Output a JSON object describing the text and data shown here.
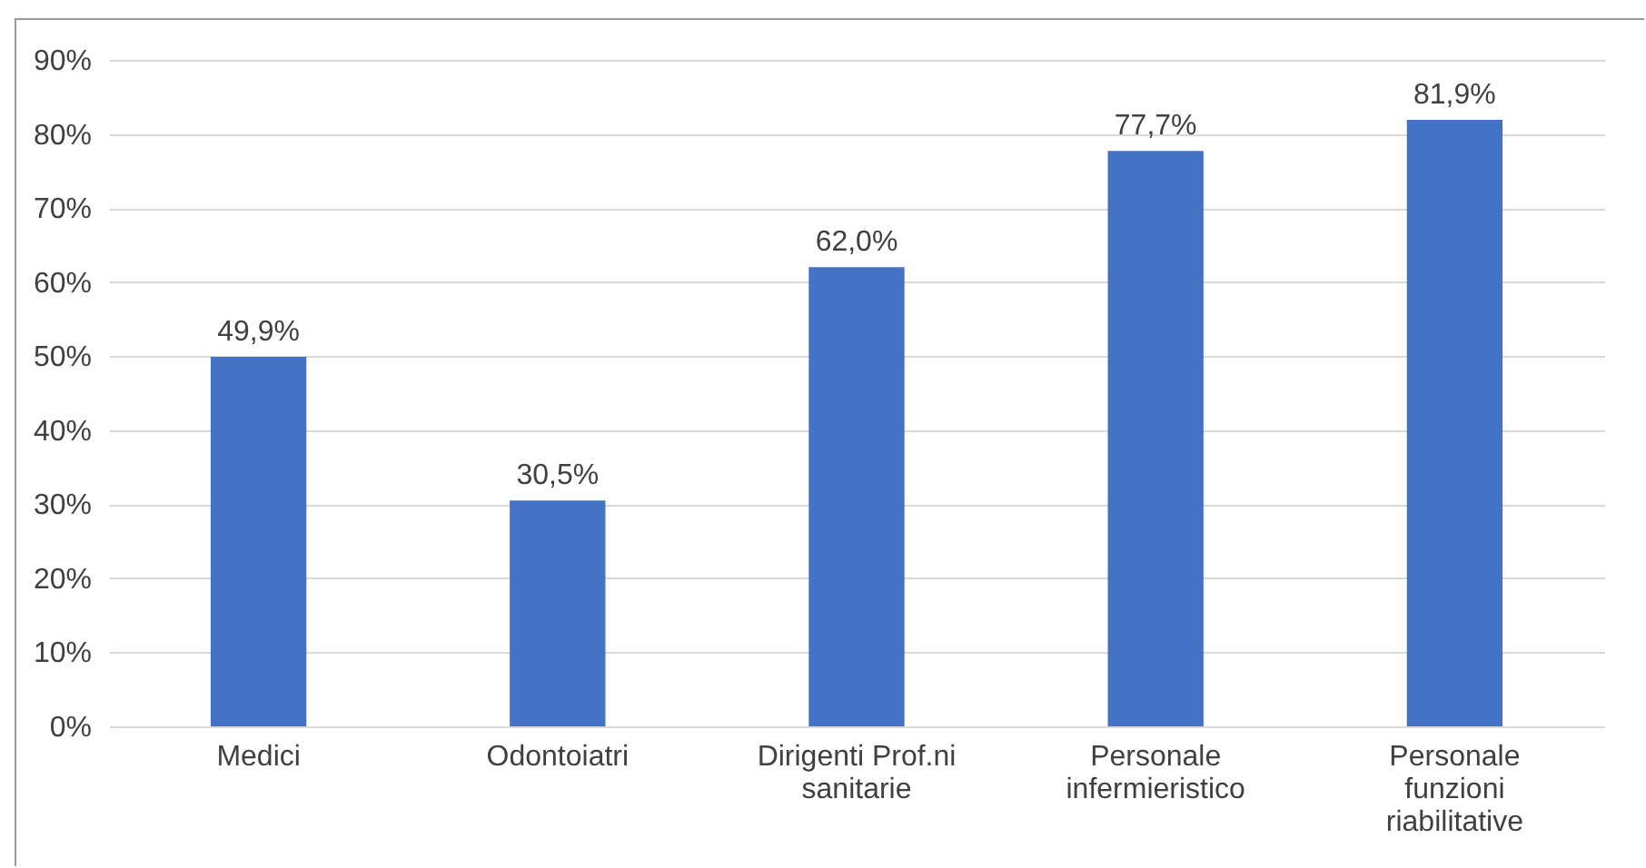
{
  "chart_data": {
    "type": "bar",
    "categories": [
      "Medici",
      "Odontoiatri",
      "Dirigenti Prof.ni sanitarie",
      "Personale infermieristico",
      "Personale funzioni riabilitative"
    ],
    "values": [
      49.9,
      30.5,
      62.0,
      77.7,
      81.9
    ],
    "value_labels": [
      "49,9%",
      "30,5%",
      "62,0%",
      "77,7%",
      "81,9%"
    ],
    "color": "#4472c4",
    "ylim": [
      0,
      90
    ],
    "yticks": [
      {
        "value": 0,
        "label": "0%"
      },
      {
        "value": 10,
        "label": "10%"
      },
      {
        "value": 20,
        "label": "20%"
      },
      {
        "value": 30,
        "label": "30%"
      },
      {
        "value": 40,
        "label": "40%"
      },
      {
        "value": 50,
        "label": "50%"
      },
      {
        "value": 60,
        "label": "60%"
      },
      {
        "value": 70,
        "label": "70%"
      },
      {
        "value": 80,
        "label": "80%"
      },
      {
        "value": 90,
        "label": "90%"
      }
    ],
    "grid": "y"
  }
}
